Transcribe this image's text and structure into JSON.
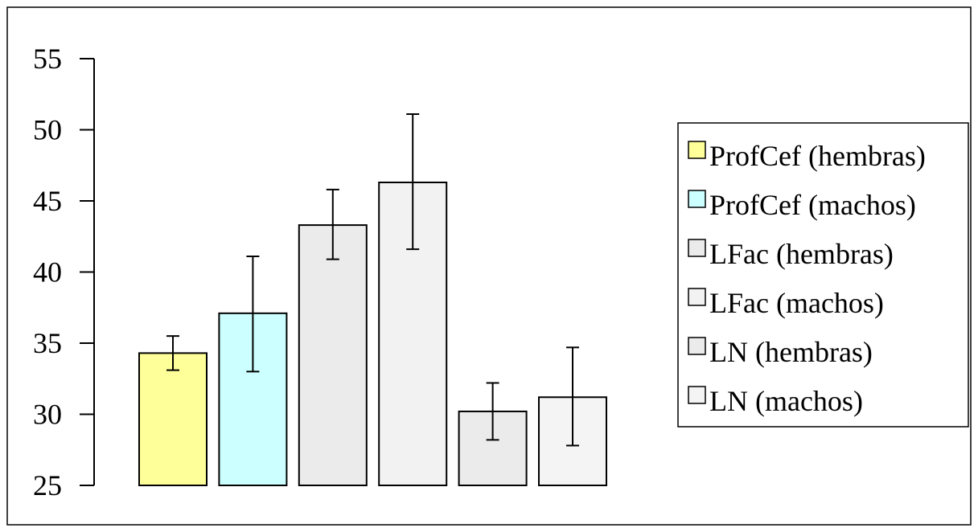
{
  "chart_data": {
    "type": "bar",
    "categories": [
      "ProfCef (hembras)",
      "ProfCef (machos)",
      "LFac (hembras)",
      "LFac (machos)",
      "LN (hembras)",
      "LN (machos)"
    ],
    "values": [
      34.3,
      37.1,
      43.3,
      46.3,
      30.2,
      31.2
    ],
    "error_low": [
      33.1,
      33.0,
      40.9,
      41.6,
      28.2,
      27.8
    ],
    "error_high": [
      35.5,
      41.1,
      45.8,
      51.1,
      32.2,
      34.7
    ],
    "colors": [
      "#ffff99",
      "#ccffff",
      "#ebebeb",
      "#f2f2f2",
      "#ebebeb",
      "#f4f4f4"
    ],
    "ylim": [
      25,
      55
    ],
    "yticks": [
      "25",
      "30",
      "35",
      "40",
      "45",
      "50",
      "55"
    ],
    "title": "",
    "xlabel": "",
    "ylabel": "",
    "legend_position": "right",
    "grid": false
  }
}
